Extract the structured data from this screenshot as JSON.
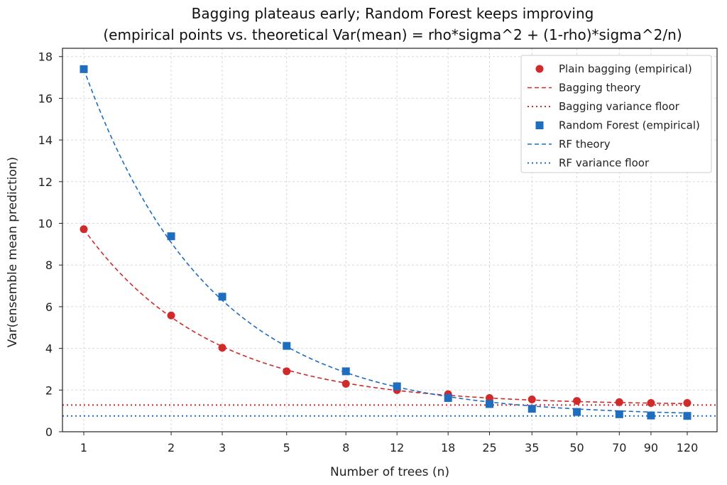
{
  "title_line1": "Bagging plateaus early; Random Forest keeps improving",
  "title_line2": "(empirical points vs. theoretical Var(mean) = rho*sigma^2 + (1-rho)*sigma^2/n)",
  "chart_data": {
    "type": "line",
    "xlabel": "Number of trees (n)",
    "ylabel": "Var(ensemble mean prediction)",
    "x_scale": "log",
    "x_ticks": [
      1,
      2,
      3,
      5,
      8,
      12,
      18,
      25,
      35,
      50,
      70,
      90,
      120
    ],
    "y_ticks": [
      0,
      2,
      4,
      6,
      8,
      10,
      12,
      14,
      16,
      18
    ],
    "ylim": [
      0,
      18.4
    ],
    "grid": true,
    "legend_position": "top-right",
    "series": [
      {
        "name": "Plain bagging (empirical)",
        "kind": "scatter",
        "marker": "circle",
        "color": "#d02a2a",
        "x": [
          1,
          2,
          3,
          5,
          8,
          12,
          18,
          25,
          35,
          50,
          70,
          90,
          120
        ],
        "y": [
          9.72,
          5.58,
          4.03,
          2.9,
          2.3,
          2.0,
          1.8,
          1.62,
          1.55,
          1.48,
          1.42,
          1.38,
          1.38
        ]
      },
      {
        "name": "Bagging theory",
        "kind": "line",
        "style": "dashed",
        "color": "#d02a2a",
        "rho_sigma2": 1.28,
        "sigma2": 9.72
      },
      {
        "name": "Bagging variance floor",
        "kind": "hline",
        "style": "dotted",
        "color": "#d02a2a",
        "y": 1.28
      },
      {
        "name": "Random Forest (empirical)",
        "kind": "scatter",
        "marker": "square",
        "color": "#1f6dbf",
        "x": [
          1,
          2,
          3,
          5,
          8,
          12,
          18,
          25,
          35,
          50,
          70,
          90,
          120
        ],
        "y": [
          17.4,
          9.38,
          6.48,
          4.12,
          2.9,
          2.18,
          1.62,
          1.33,
          1.1,
          0.95,
          0.84,
          0.78,
          0.76
        ]
      },
      {
        "name": "RF theory",
        "kind": "line",
        "style": "dashed",
        "color": "#1f6dbf",
        "rho_sigma2": 0.76,
        "sigma2": 17.4
      },
      {
        "name": "RF variance floor",
        "kind": "hline",
        "style": "dotted",
        "color": "#1f6dbf",
        "y": 0.76
      }
    ]
  }
}
